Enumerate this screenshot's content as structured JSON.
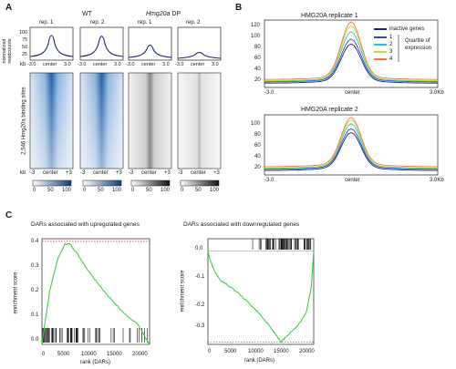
{
  "panel_letters": {
    "a": "A",
    "b": "B",
    "c": "C"
  },
  "panel_a": {
    "group_wt": "WT",
    "group_dp_gene": "Hmg20a",
    "group_dp_suffix": " DP",
    "rep_labels": [
      "rep. 1",
      "rep. 2",
      "rep. 1",
      "rep. 2"
    ],
    "profile_ylabel_line1": "normalized",
    "profile_ylabel_line2": "readcounts",
    "profile_yticks": [
      "100",
      "75",
      "50",
      "25"
    ],
    "kb_label": "kb",
    "profile_x_ticks": [
      "-3.0",
      "center",
      "3.0"
    ],
    "heatmap_ylabel": "2,546 Hmg20a binding sites",
    "heatmap_x_ticks": [
      "-3",
      "center",
      "+3"
    ],
    "colorbar_ticks": [
      "0",
      "50",
      "100"
    ],
    "colors": {
      "wt": "#1f5fa8",
      "dp": "#333333",
      "profile_line": "#1a237e"
    }
  },
  "panel_b": {
    "charts": [
      {
        "title": "HMG20A replicate 1",
        "yticks": [
          "120",
          "100",
          "80",
          "60",
          "40",
          "20"
        ],
        "xticks": [
          "-3.0",
          "center",
          "3.0Kb"
        ],
        "legend_title": "inactive genes",
        "legend_quartiles": [
          "1",
          "2",
          "3",
          "4"
        ],
        "legend_side_line1": "Quartile of",
        "legend_side_line2": "expression"
      },
      {
        "title": "HMG20A replicate 2",
        "yticks": [
          "100",
          "80",
          "60",
          "40",
          "20"
        ],
        "xticks": [
          "-3.0",
          "center",
          "3.0Kb"
        ]
      }
    ],
    "series_colors": [
      "#1a237e",
      "#3949ab",
      "#26c6da",
      "#c6d83a",
      "#ff7043"
    ]
  },
  "panel_c": {
    "charts": [
      {
        "title": "DARs associated with upregulated genes",
        "ylabel": "enrichment score",
        "xlabel": "rank (DARs)",
        "yticks": [
          "0.4",
          "0.3",
          "0.2",
          "0.1",
          "0.0"
        ],
        "xticks": [
          "0",
          "5000",
          "10000",
          "15000",
          "20000"
        ]
      },
      {
        "title": "DARs associated with downregulated genes",
        "ylabel": "enrichment score",
        "xlabel": "rank (DARs)",
        "yticks": [
          "0.0",
          "-0.1",
          "-0.2",
          "-0.3"
        ],
        "xticks": [
          "0",
          "5000",
          "10000",
          "15000",
          "20000"
        ]
      }
    ],
    "curve_color": "#33cc33",
    "threshold_color": "#cc3333"
  },
  "chart_data": [
    {
      "type": "line",
      "title": "HMG20A replicate 1",
      "x": [
        "-3.0",
        "center",
        "3.0Kb"
      ],
      "ylim": [
        15,
        125
      ],
      "series": [
        {
          "name": "inactive genes",
          "peak": 82,
          "base": 22
        },
        {
          "name": "1",
          "peak": 90,
          "base": 24
        },
        {
          "name": "2",
          "peak": 102,
          "base": 25
        },
        {
          "name": "3",
          "peak": 112,
          "base": 26
        },
        {
          "name": "4",
          "peak": 118,
          "base": 28
        }
      ]
    },
    {
      "type": "line",
      "title": "HMG20A replicate 2",
      "x": [
        "-3.0",
        "center",
        "3.0Kb"
      ],
      "ylim": [
        15,
        110
      ],
      "series": [
        {
          "name": "inactive genes",
          "peak": 78,
          "base": 22
        },
        {
          "name": "1",
          "peak": 84,
          "base": 24
        },
        {
          "name": "2",
          "peak": 92,
          "base": 25
        },
        {
          "name": "3",
          "peak": 98,
          "base": 26
        },
        {
          "name": "4",
          "peak": 102,
          "base": 28
        }
      ]
    },
    {
      "type": "line",
      "title": "DARs associated with upregulated genes",
      "xlabel": "rank (DARs)",
      "ylabel": "enrichment score",
      "xlim": [
        0,
        21000
      ],
      "ylim": [
        0,
        0.4
      ],
      "x": [
        0,
        500,
        1500,
        3000,
        4500,
        5500,
        7000,
        9000,
        11000,
        13000,
        15000,
        17000,
        18500,
        19500,
        20300,
        21000
      ],
      "y": [
        0.0,
        0.07,
        0.2,
        0.32,
        0.38,
        0.38,
        0.34,
        0.28,
        0.23,
        0.18,
        0.14,
        0.1,
        0.08,
        0.05,
        0.02,
        0.0
      ],
      "max_es": 0.39
    },
    {
      "type": "line",
      "title": "DARs associated with downregulated genes",
      "xlabel": "rank (DARs)",
      "ylabel": "enrichment score",
      "xlim": [
        0,
        21000
      ],
      "ylim": [
        -0.38,
        0.05
      ],
      "x": [
        0,
        500,
        1500,
        2500,
        4000,
        6000,
        8000,
        10000,
        12000,
        13500,
        14500,
        16000,
        18000,
        19500,
        20500,
        21000
      ],
      "y": [
        0.0,
        -0.04,
        -0.09,
        -0.12,
        -0.14,
        -0.17,
        -0.21,
        -0.25,
        -0.3,
        -0.34,
        -0.37,
        -0.34,
        -0.3,
        -0.25,
        -0.15,
        0.0
      ],
      "min_es": -0.37
    }
  ]
}
